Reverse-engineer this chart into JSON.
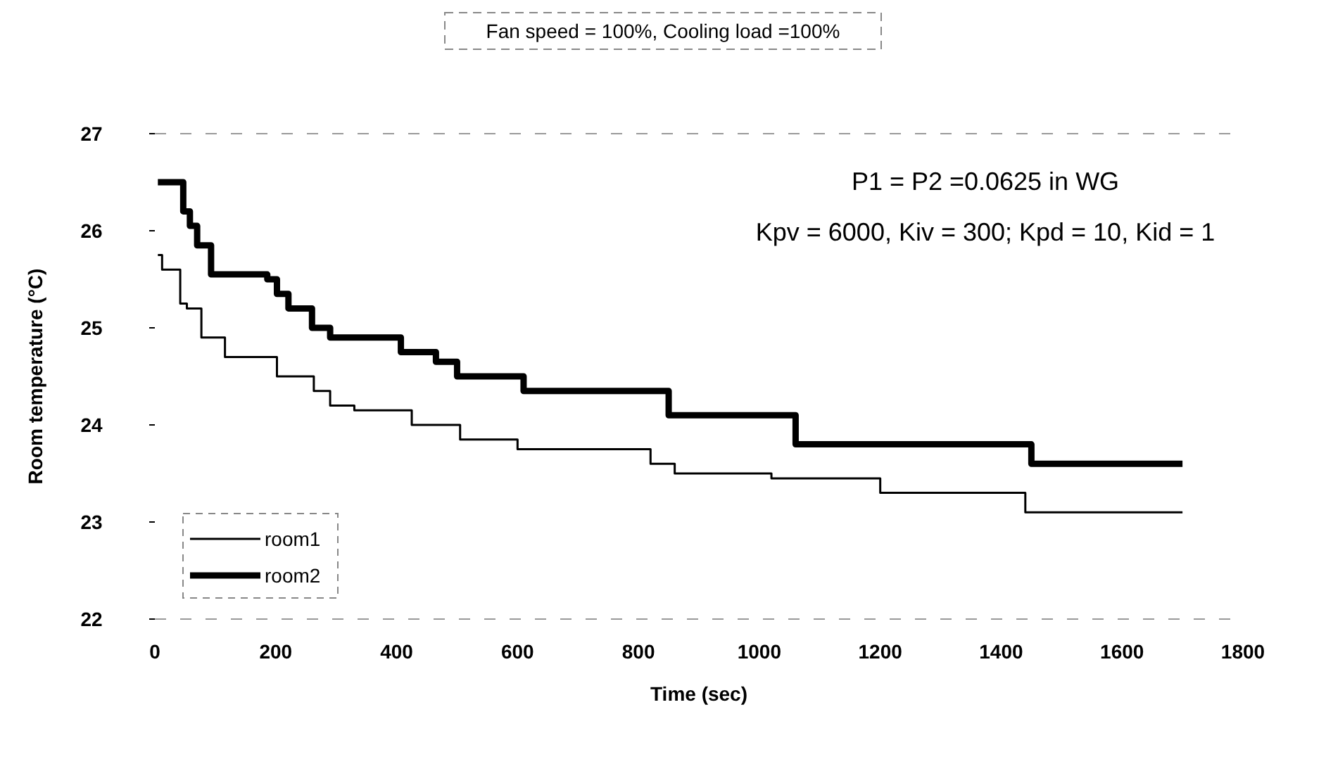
{
  "chart_data": {
    "type": "step",
    "title": "Fan speed = 100%, Cooling load =100%",
    "xlabel": "Time (sec)",
    "ylabel": "Room temperature (°C)",
    "annotations": [
      "P1 = P2 =0.0625 in WG",
      "Kpv = 6000, Kiv = 300; Kpd = 10, Kid = 1"
    ],
    "xlim": [
      0,
      1800
    ],
    "xticks": [
      0,
      200,
      400,
      600,
      800,
      1000,
      1200,
      1400,
      1600,
      1800
    ],
    "ylim": [
      22,
      27
    ],
    "yticks": [
      22,
      23,
      24,
      25,
      26,
      27
    ],
    "grid": false,
    "legend": "bottom left",
    "marker": "none",
    "line_style": "solid",
    "series": [
      {
        "name": "room1",
        "color": "#000000",
        "x": [
          5,
          12,
          42,
          53,
          77,
          116,
          202,
          263,
          290,
          330,
          425,
          505,
          600,
          820,
          860,
          1020,
          1200,
          1440,
          1700
        ],
        "values": [
          25.75,
          25.6,
          25.25,
          25.2,
          24.9,
          24.7,
          24.5,
          24.35,
          24.2,
          24.15,
          24,
          23.85,
          23.75,
          23.6,
          23.5,
          23.45,
          23.3,
          23.1,
          23.1
        ]
      },
      {
        "name": "room2",
        "color": "#000000",
        "x": [
          5,
          30,
          47,
          58,
          70,
          93,
          186,
          202,
          221,
          260,
          290,
          407,
          465,
          500,
          610,
          850,
          1060,
          1450,
          1700
        ],
        "values": [
          26.5,
          26.5,
          26.2,
          26.05,
          25.85,
          25.55,
          25.5,
          25.35,
          25.2,
          25,
          24.9,
          24.75,
          24.65,
          24.5,
          24.35,
          24.1,
          23.8,
          23.6,
          23.6
        ]
      }
    ]
  }
}
